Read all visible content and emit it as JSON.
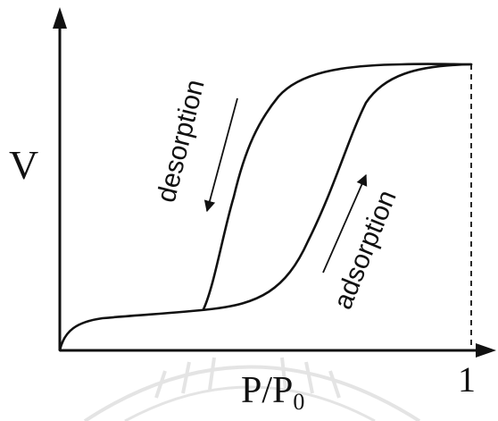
{
  "diagram": {
    "y_axis_label": "V",
    "x_axis_label": "P/P",
    "x_axis_label_subscript": "0",
    "x_tick_label": "1",
    "adsorption_label": "adsorption",
    "desorption_label": "desorption",
    "watermark_present": true
  }
}
